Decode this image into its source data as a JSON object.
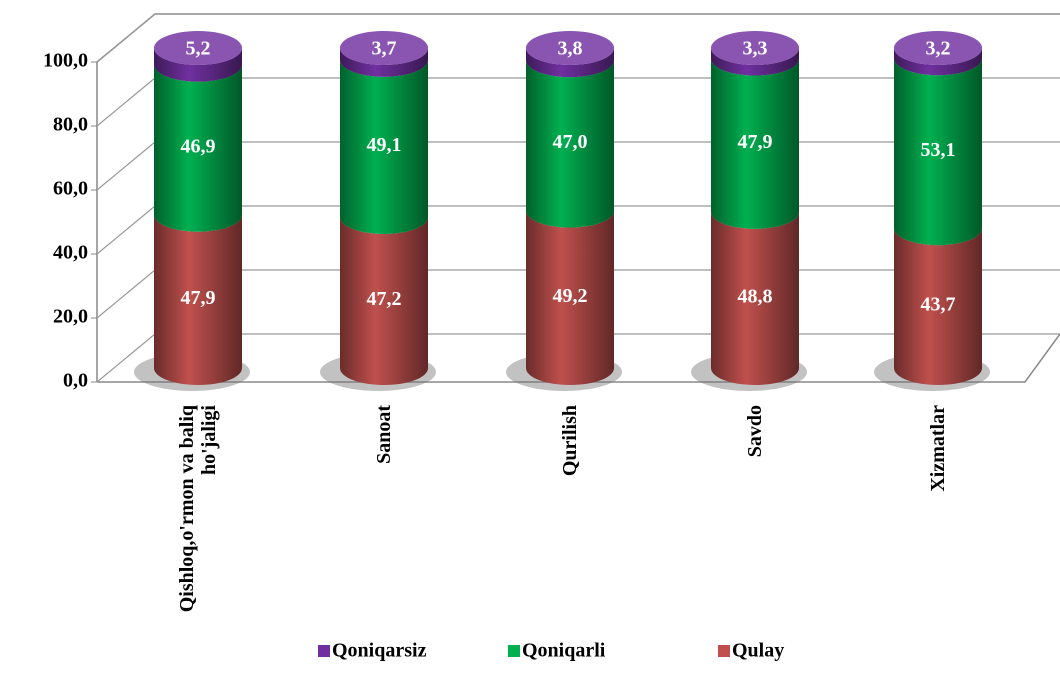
{
  "chart_data": {
    "type": "stacked_cylinder",
    "categories": [
      "Qishloq,o'rmon va baliq ho'jaligi",
      "Sanoat",
      "Qurilish",
      "Savdo",
      "Xizmatlar"
    ],
    "series": [
      {
        "name": "Qulay",
        "color": "#c0504d",
        "values": [
          47.9,
          47.2,
          49.2,
          48.8,
          43.7
        ],
        "value_labels": [
          "47,9",
          "47,2",
          "49,2",
          "48,8",
          "43,7"
        ]
      },
      {
        "name": "Qoniqarli",
        "color": "#00b050",
        "values": [
          46.9,
          49.1,
          47.0,
          47.9,
          53.1
        ],
        "value_labels": [
          "46,9",
          "49,1",
          "47,0",
          "47,9",
          "53,1"
        ]
      },
      {
        "name": "Qoniqarsiz",
        "color": "#7030a0",
        "values": [
          5.2,
          3.7,
          3.8,
          3.3,
          3.2
        ],
        "value_labels": [
          "5,2",
          "3,7",
          "3,8",
          "3,3",
          "3,2"
        ]
      }
    ],
    "ylim": [
      0,
      100
    ],
    "yticks": [
      {
        "value": 0,
        "label": "0,0"
      },
      {
        "value": 20,
        "label": "20,0"
      },
      {
        "value": 40,
        "label": "40,0"
      },
      {
        "value": 60,
        "label": "60,0"
      },
      {
        "value": 80,
        "label": "80,0"
      },
      {
        "value": 100,
        "label": "100,0"
      }
    ],
    "grid": true,
    "legend": "bottom"
  }
}
